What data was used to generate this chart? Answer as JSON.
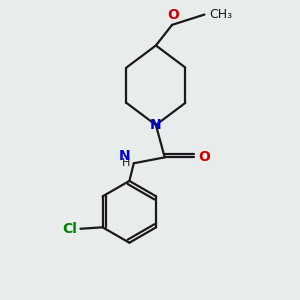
{
  "background_color": "#e8eceb",
  "bond_color": "#1a1a1a",
  "N_color": "#0000cc",
  "O_color": "#cc0000",
  "Cl_color": "#008000",
  "line_width": 1.6,
  "figsize": [
    3.0,
    3.0
  ],
  "dpi": 100,
  "xlim": [
    0,
    10
  ],
  "ylim": [
    0,
    10
  ]
}
